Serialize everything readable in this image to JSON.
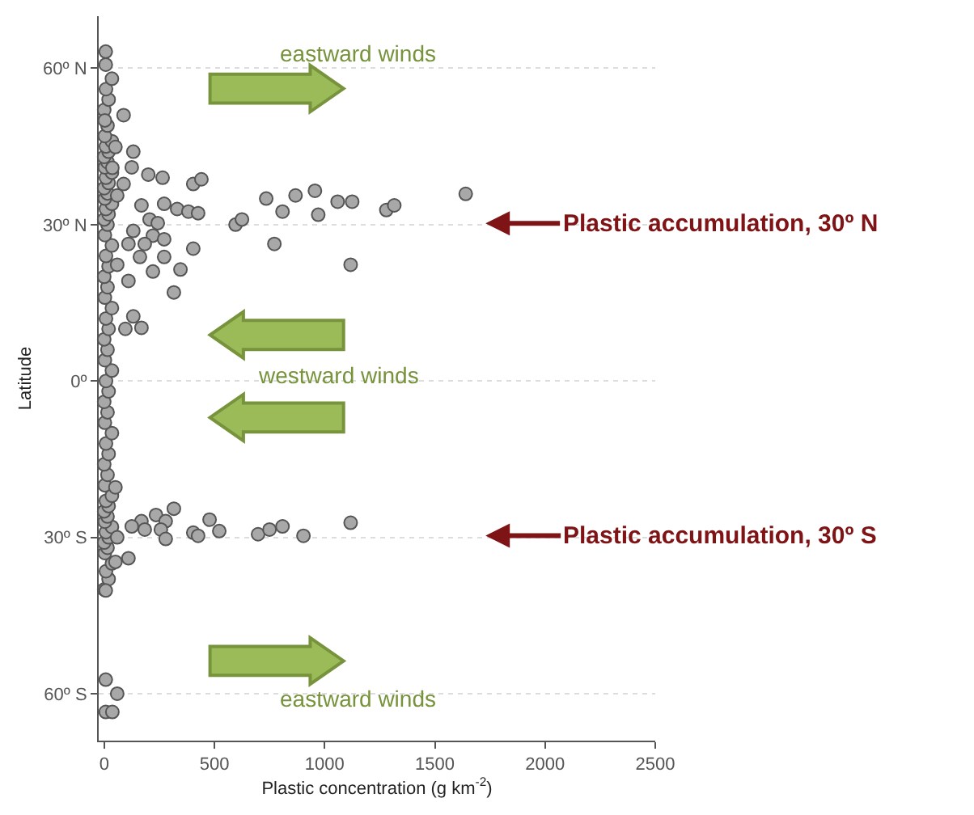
{
  "chart_data": {
    "type": "scatter",
    "xlabel": "Plastic concentration (g km$^{-2}$)",
    "ylabel": "Latitude",
    "xlim": [
      -25,
      2500
    ],
    "ylim": [
      -69,
      70
    ],
    "xticks": [
      0,
      500,
      1000,
      1500,
      2000,
      2500
    ],
    "yticks": [
      {
        "value": 60,
        "label": "60º N"
      },
      {
        "value": 30,
        "label": "30º N"
      },
      {
        "value": 0,
        "label": "0º"
      },
      {
        "value": -30,
        "label": "30º S"
      },
      {
        "value": -60,
        "label": "60º S"
      }
    ],
    "grid": "y",
    "marker": "circle",
    "series": [
      {
        "color": "#a8a8a8",
        "x": [
          0,
          20,
          8,
          35,
          3,
          15,
          0,
          20,
          8,
          35,
          3,
          15,
          0,
          20,
          8,
          35,
          3,
          15,
          0,
          20,
          8,
          35,
          3,
          15,
          0,
          20,
          8,
          35,
          3,
          15,
          0,
          20,
          8,
          35,
          3,
          15,
          0,
          20,
          8,
          35,
          3,
          15,
          0,
          20,
          8,
          35,
          3,
          15,
          0,
          20,
          8,
          35,
          3,
          15,
          0,
          20,
          8,
          35,
          3,
          15,
          0,
          20,
          8,
          35,
          3,
          7,
          7,
          88,
          132,
          125,
          200,
          265,
          404,
          441,
          735,
          868,
          956,
          809,
          971,
          1059,
          1125,
          1280,
          1316,
          1640,
          596,
          625,
          772,
          1118,
          404,
          316,
          346,
          221,
          272,
          110,
          96,
          169,
          132,
          331,
          382,
          426,
          272,
          169,
          206,
          243,
          221,
          272,
          132,
          88,
          59,
          110,
          162,
          59,
          184,
          51,
          37,
          316,
          235,
          169,
          125,
          279,
          257,
          279,
          184,
          478,
          522,
          404,
          426,
          698,
          750,
          809,
          904,
          1118,
          51,
          110,
          59,
          51,
          7,
          7,
          59,
          7,
          37
        ],
        "values": [
          -40,
          -38,
          -36.5,
          -35,
          -33,
          -32,
          -31,
          -30,
          -29,
          -28,
          -27,
          -26,
          -25,
          -24,
          -23,
          -22,
          -20,
          -18,
          -16,
          -14,
          -12,
          -10,
          -8,
          -6,
          -4,
          -2,
          0,
          2,
          4,
          6,
          8,
          10,
          12,
          14,
          16,
          18,
          20,
          22,
          24,
          26,
          28,
          30,
          31,
          32,
          33,
          34,
          35,
          36,
          37,
          38,
          39,
          40,
          41,
          42,
          43,
          44,
          45,
          46,
          47,
          49,
          52,
          54,
          56,
          58,
          50,
          63.2,
          60.7,
          51,
          44,
          41,
          39.6,
          39,
          37.8,
          38.7,
          35,
          35.6,
          36.5,
          32.5,
          31.9,
          34.4,
          34.4,
          32.8,
          33.7,
          35.9,
          30,
          31,
          26.3,
          22.3,
          25.4,
          17,
          21.4,
          21,
          23.8,
          19.2,
          10,
          10.2,
          12.4,
          33,
          32.5,
          32.2,
          34,
          33.7,
          31,
          30.3,
          27.9,
          27.2,
          28.8,
          37.8,
          35.6,
          26.3,
          23.8,
          22.3,
          26.3,
          44.9,
          40.9,
          -24.5,
          -25.7,
          -26.9,
          -27.9,
          -26.9,
          -28.5,
          -30.3,
          -28.5,
          -26.6,
          -28.8,
          -29.1,
          -29.7,
          -29.4,
          -28.5,
          -27.9,
          -29.7,
          -27.2,
          -20.4,
          -34,
          -30,
          -34.7,
          -40.2,
          -57.3,
          -60,
          -63.5,
          -63.5
        ]
      }
    ],
    "annotations": [
      "eastward winds",
      "westward winds",
      "eastward winds",
      "Plastic accumulation, 30º N",
      "Plastic accumulation, 30º S"
    ]
  }
}
